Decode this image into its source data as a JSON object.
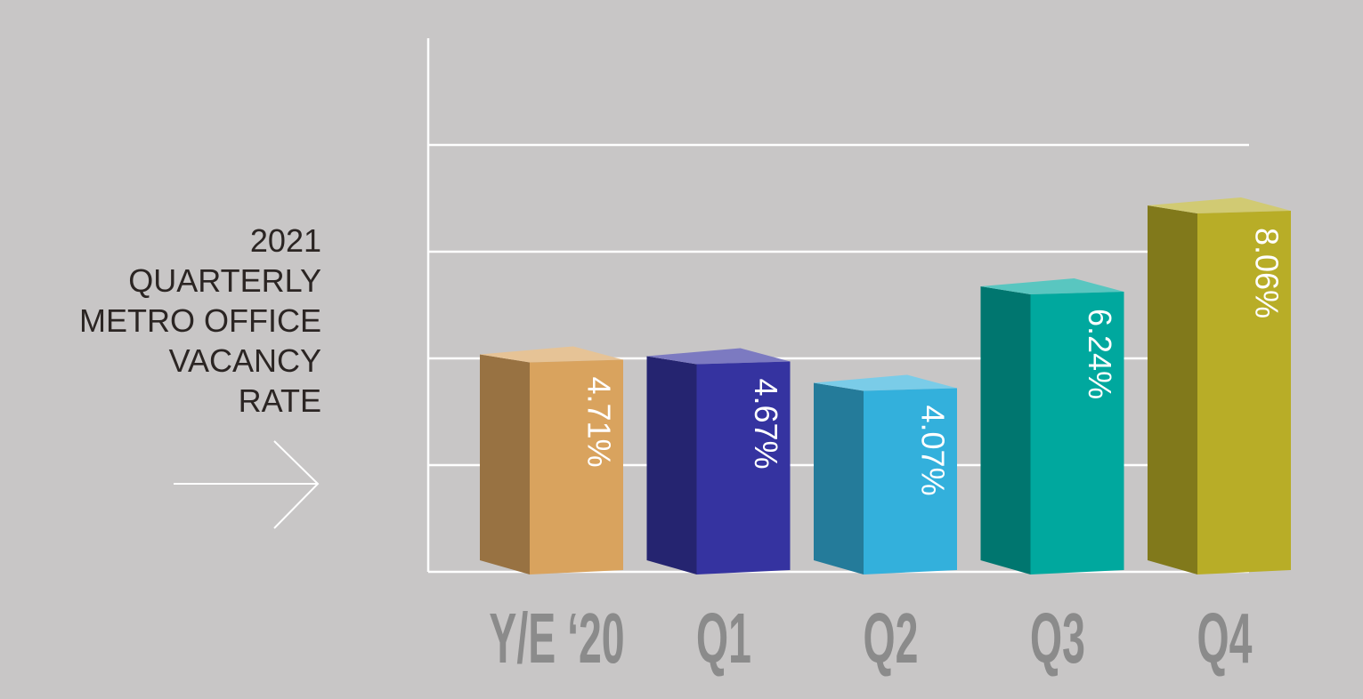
{
  "chart_data": {
    "type": "bar3d",
    "title": [
      "2021",
      "QUARTERLY",
      "METRO OFFICE",
      "VACANCY",
      "RATE"
    ],
    "categories": [
      "Y/E ‘20",
      "Q1",
      "Q2",
      "Q3",
      "Q4"
    ],
    "values": [
      4.71,
      4.67,
      4.07,
      6.24,
      8.06
    ],
    "value_labels": [
      "4.71%",
      "4.67%",
      "4.07%",
      "6.24%",
      "8.06%"
    ],
    "colors": [
      "#d9a35e",
      "#3533a0",
      "#33b0dc",
      "#00a89e",
      "#b8ad27"
    ],
    "ylim": [
      0,
      12
    ],
    "yticks": [
      0,
      2.4,
      4.8,
      7.2,
      9.6
    ],
    "grid": true
  }
}
